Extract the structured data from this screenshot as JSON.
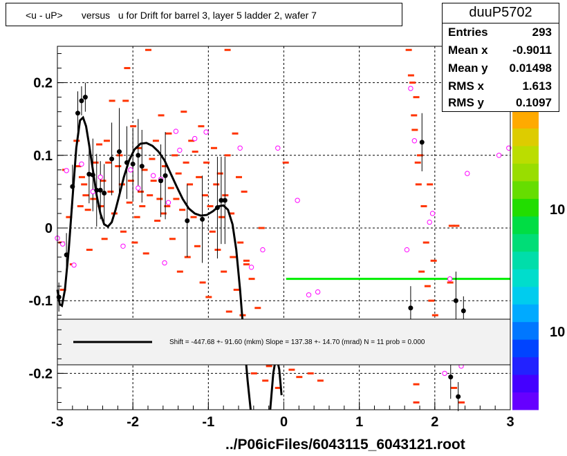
{
  "title": "<u - uP>       versus   u for Drift for barrel 3, layer 5 ladder 2, wafer 7",
  "stats": {
    "name": "duuP5702",
    "rows": [
      {
        "label": "Entries",
        "value": "293"
      },
      {
        "label": "Mean x",
        "value": "-0.9011"
      },
      {
        "label": "Mean y",
        "value": "0.01498"
      },
      {
        "label": "RMS x",
        "value": "1.613"
      },
      {
        "label": "RMS y",
        "value": "0.1097"
      }
    ]
  },
  "fit_legend": "Shift =  -447.68 +- 91.60 (mkm) Slope =   137.38 +- 14.70 (mrad)  N = 11 prob = 0.000",
  "footer": "../P06icFiles/6043115_6043121.root",
  "colors": {
    "hist_cells": "#ff3300",
    "profile_points": "#000000",
    "open_markers": "#ff00ff",
    "fit_line": "#000000",
    "zero_line": "#00ee00"
  },
  "chart_data": {
    "type": "scatter",
    "xlim": [
      -3,
      3
    ],
    "ylim": [
      -0.25,
      0.25
    ],
    "x_ticks": [
      -3,
      -2,
      -1,
      0,
      1,
      2,
      3
    ],
    "y_ticks": [
      -0.2,
      -0.1,
      0,
      0.1,
      0.2
    ],
    "x_tick_labels": [
      "-3",
      "-2",
      "-1",
      "0",
      "1",
      "2",
      "3"
    ],
    "y_tick_labels": [
      "-0.2",
      "-0.1",
      "0",
      "0.1",
      "0.2"
    ],
    "grid": true,
    "colorbar_labels": [
      "10",
      "10"
    ],
    "profile_points": [
      {
        "x": -2.98,
        "y": -0.095,
        "err": 0.02
      },
      {
        "x": -2.88,
        "y": -0.037,
        "err": 0.03
      },
      {
        "x": -2.8,
        "y": 0.057,
        "err": 0.03
      },
      {
        "x": -2.73,
        "y": 0.158,
        "err": 0.03
      },
      {
        "x": -2.68,
        "y": 0.175,
        "err": 0.02
      },
      {
        "x": -2.63,
        "y": 0.18,
        "err": 0.02
      },
      {
        "x": -2.58,
        "y": 0.074,
        "err": 0.04
      },
      {
        "x": -2.53,
        "y": 0.073,
        "err": 0.05
      },
      {
        "x": -2.48,
        "y": 0.052,
        "err": 0.05
      },
      {
        "x": -2.43,
        "y": 0.052,
        "err": 0.04
      },
      {
        "x": -2.38,
        "y": 0.048,
        "err": 0.04
      },
      {
        "x": -2.28,
        "y": 0.095,
        "err": 0.05
      },
      {
        "x": -2.18,
        "y": 0.105,
        "err": 0.06
      },
      {
        "x": -2.08,
        "y": 0.09,
        "err": 0.05
      },
      {
        "x": -2.0,
        "y": 0.088,
        "err": 0.05
      },
      {
        "x": -1.93,
        "y": 0.1,
        "err": 0.05
      },
      {
        "x": -1.88,
        "y": 0.085,
        "err": 0.05
      },
      {
        "x": -1.63,
        "y": 0.065,
        "err": 0.05
      },
      {
        "x": -1.57,
        "y": 0.072,
        "err": 0.06
      },
      {
        "x": -1.28,
        "y": 0.01,
        "err": 0.05
      },
      {
        "x": -1.08,
        "y": 0.012,
        "err": 0.06
      },
      {
        "x": -0.88,
        "y": 0.028,
        "err": 0.07
      },
      {
        "x": -0.83,
        "y": 0.038,
        "err": 0.06
      },
      {
        "x": -0.78,
        "y": 0.038,
        "err": 0.06
      },
      {
        "x": 1.83,
        "y": 0.118,
        "err": 0.04
      },
      {
        "x": 1.68,
        "y": -0.11,
        "err": 0.03
      },
      {
        "x": 2.21,
        "y": -0.205,
        "err": 0.03
      },
      {
        "x": 2.28,
        "y": -0.1,
        "err": 0.04
      },
      {
        "x": 2.31,
        "y": -0.232,
        "err": 0.02
      },
      {
        "x": 2.38,
        "y": -0.114,
        "err": 0.02
      }
    ],
    "open_markers": [
      {
        "x": -3.0,
        "y": -0.014
      },
      {
        "x": -2.93,
        "y": -0.022
      },
      {
        "x": -2.88,
        "y": 0.079
      },
      {
        "x": -2.78,
        "y": -0.051
      },
      {
        "x": -2.68,
        "y": 0.088
      },
      {
        "x": -2.53,
        "y": 0.05
      },
      {
        "x": -2.43,
        "y": 0.07
      },
      {
        "x": -2.13,
        "y": -0.025
      },
      {
        "x": -2.03,
        "y": 0.08
      },
      {
        "x": -1.93,
        "y": 0.055
      },
      {
        "x": -1.73,
        "y": 0.072
      },
      {
        "x": -1.63,
        "y": 0.067
      },
      {
        "x": -1.58,
        "y": -0.048
      },
      {
        "x": -1.53,
        "y": 0.035
      },
      {
        "x": -1.43,
        "y": 0.133
      },
      {
        "x": -1.38,
        "y": 0.107
      },
      {
        "x": -1.18,
        "y": 0.123
      },
      {
        "x": -1.03,
        "y": 0.132
      },
      {
        "x": -0.58,
        "y": 0.11
      },
      {
        "x": -0.43,
        "y": -0.054
      },
      {
        "x": -0.28,
        "y": -0.03
      },
      {
        "x": -0.08,
        "y": 0.11
      },
      {
        "x": 0.18,
        "y": 0.038
      },
      {
        "x": 0.33,
        "y": -0.092
      },
      {
        "x": 0.45,
        "y": -0.088
      },
      {
        "x": 1.63,
        "y": -0.03
      },
      {
        "x": 1.68,
        "y": 0.192
      },
      {
        "x": 1.73,
        "y": 0.12
      },
      {
        "x": 1.93,
        "y": 0.008
      },
      {
        "x": 1.97,
        "y": 0.02
      },
      {
        "x": 2.13,
        "y": -0.2
      },
      {
        "x": 2.2,
        "y": -0.07
      },
      {
        "x": 2.35,
        "y": -0.19
      },
      {
        "x": 2.43,
        "y": 0.075
      },
      {
        "x": 2.6,
        "y": 0.205
      },
      {
        "x": 2.85,
        "y": 0.1
      },
      {
        "x": 2.98,
        "y": 0.11
      }
    ],
    "hist_cells": [
      {
        "x": -2.95,
        "y": -0.02
      },
      {
        "x": -2.93,
        "y": -0.085
      },
      {
        "x": -2.9,
        "y": 0.08
      },
      {
        "x": -2.85,
        "y": 0.015
      },
      {
        "x": -2.8,
        "y": -0.05
      },
      {
        "x": -2.75,
        "y": 0.12
      },
      {
        "x": -2.73,
        "y": 0.085
      },
      {
        "x": -2.7,
        "y": 0.03
      },
      {
        "x": -2.68,
        "y": 0.07
      },
      {
        "x": -2.65,
        "y": 0.06
      },
      {
        "x": -2.63,
        "y": 0.045
      },
      {
        "x": -2.6,
        "y": 0.025
      },
      {
        "x": -2.58,
        "y": -0.03
      },
      {
        "x": -2.53,
        "y": 0.04
      },
      {
        "x": -2.5,
        "y": 0.09
      },
      {
        "x": -2.45,
        "y": 0.115
      },
      {
        "x": -2.43,
        "y": 0.03
      },
      {
        "x": -2.4,
        "y": 0.065
      },
      {
        "x": -2.38,
        "y": -0.015
      },
      {
        "x": -2.35,
        "y": 0.12
      },
      {
        "x": -2.33,
        "y": 0.09
      },
      {
        "x": -2.3,
        "y": 0.05
      },
      {
        "x": -2.28,
        "y": 0.175
      },
      {
        "x": -2.25,
        "y": 0.02
      },
      {
        "x": -2.2,
        "y": 0.085
      },
      {
        "x": -2.18,
        "y": 0.1
      },
      {
        "x": -2.15,
        "y": 0.06
      },
      {
        "x": -2.13,
        "y": -0.005
      },
      {
        "x": -2.1,
        "y": 0.175
      },
      {
        "x": -2.08,
        "y": 0.22
      },
      {
        "x": -2.05,
        "y": 0.035
      },
      {
        "x": -2.03,
        "y": 0.065
      },
      {
        "x": -2.0,
        "y": 0.14
      },
      {
        "x": -1.98,
        "y": -0.02
      },
      {
        "x": -1.95,
        "y": 0.015
      },
      {
        "x": -1.93,
        "y": 0.11
      },
      {
        "x": -1.9,
        "y": 0.05
      },
      {
        "x": -1.88,
        "y": 0.03
      },
      {
        "x": -1.85,
        "y": 0.08
      },
      {
        "x": -1.83,
        "y": -0.035
      },
      {
        "x": -1.8,
        "y": 0.245
      },
      {
        "x": -1.78,
        "y": 0.045
      },
      {
        "x": -1.75,
        "y": 0.095
      },
      {
        "x": -1.73,
        "y": 0.065
      },
      {
        "x": -1.7,
        "y": 0.12
      },
      {
        "x": -1.68,
        "y": 0.01
      },
      {
        "x": -1.65,
        "y": 0.04
      },
      {
        "x": -1.63,
        "y": 0.155
      },
      {
        "x": -1.6,
        "y": 0.02
      },
      {
        "x": -1.58,
        "y": 0.085
      },
      {
        "x": -1.55,
        "y": 0.03
      },
      {
        "x": -1.53,
        "y": 0.13
      },
      {
        "x": -1.5,
        "y": 0.055
      },
      {
        "x": -1.48,
        "y": -0.015
      },
      {
        "x": -1.45,
        "y": 0.1
      },
      {
        "x": -1.43,
        "y": 0.04
      },
      {
        "x": -1.4,
        "y": 0.075
      },
      {
        "x": -1.38,
        "y": -0.06
      },
      {
        "x": -1.35,
        "y": 0.025
      },
      {
        "x": -1.33,
        "y": 0.16
      },
      {
        "x": -1.3,
        "y": 0.09
      },
      {
        "x": -1.28,
        "y": -0.04
      },
      {
        "x": -1.25,
        "y": 0.06
      },
      {
        "x": -1.23,
        "y": 0.12
      },
      {
        "x": -1.2,
        "y": 0.015
      },
      {
        "x": -1.18,
        "y": 0.105
      },
      {
        "x": -1.15,
        "y": -0.025
      },
      {
        "x": -1.13,
        "y": 0.07
      },
      {
        "x": -1.1,
        "y": 0.14
      },
      {
        "x": -1.08,
        "y": -0.075
      },
      {
        "x": -1.05,
        "y": 0.045
      },
      {
        "x": -1.03,
        "y": 0.09
      },
      {
        "x": -1.0,
        "y": -0.095
      },
      {
        "x": -0.98,
        "y": 0.03
      },
      {
        "x": -0.95,
        "y": -0.005
      },
      {
        "x": -0.93,
        "y": 0.11
      },
      {
        "x": -0.9,
        "y": 0.06
      },
      {
        "x": -0.88,
        "y": -0.03
      },
      {
        "x": -0.85,
        "y": 0.075
      },
      {
        "x": -0.83,
        "y": 0.015
      },
      {
        "x": -0.8,
        "y": -0.06
      },
      {
        "x": -0.78,
        "y": 0.045
      },
      {
        "x": -0.75,
        "y": 0.1
      },
      {
        "x": -0.73,
        "y": -0.115
      },
      {
        "x": -0.7,
        "y": 0.02
      },
      {
        "x": -0.68,
        "y": -0.04
      },
      {
        "x": -0.65,
        "y": 0.13
      },
      {
        "x": -0.63,
        "y": -0.085
      },
      {
        "x": -0.6,
        "y": 0.07
      },
      {
        "x": -0.58,
        "y": -0.02
      },
      {
        "x": -0.55,
        "y": -0.12
      },
      {
        "x": -0.53,
        "y": 0.05
      },
      {
        "x": -0.5,
        "y": -0.05
      },
      {
        "x": -0.45,
        "y": -0.16
      },
      {
        "x": -0.43,
        "y": -0.07
      },
      {
        "x": -0.4,
        "y": -0.2
      },
      {
        "x": -0.35,
        "y": -0.11
      },
      {
        "x": -0.3,
        "y": -0.15
      },
      {
        "x": -0.25,
        "y": -0.21
      },
      {
        "x": -0.2,
        "y": -0.19
      },
      {
        "x": -0.15,
        "y": -0.13
      },
      {
        "x": -0.1,
        "y": -0.17
      },
      {
        "x": -0.08,
        "y": -0.22
      },
      {
        "x": 0.02,
        "y": 0.09
      },
      {
        "x": 0.1,
        "y": -0.195
      },
      {
        "x": 0.2,
        "y": -0.205
      },
      {
        "x": 0.35,
        "y": -0.2
      },
      {
        "x": 0.4,
        "y": -0.17
      },
      {
        "x": 0.48,
        "y": -0.21
      },
      {
        "x": 1.65,
        "y": 0.245
      },
      {
        "x": 1.68,
        "y": 0.21
      },
      {
        "x": 1.7,
        "y": 0.2
      },
      {
        "x": 1.72,
        "y": 0.155
      },
      {
        "x": 1.73,
        "y": 0.135
      },
      {
        "x": 1.75,
        "y": 0.18
      },
      {
        "x": 1.77,
        "y": 0.09
      },
      {
        "x": 1.78,
        "y": 0.06
      },
      {
        "x": 1.8,
        "y": 0.1
      },
      {
        "x": 1.82,
        "y": -0.06
      },
      {
        "x": 1.85,
        "y": 0.03
      },
      {
        "x": 1.88,
        "y": -0.02
      },
      {
        "x": 1.9,
        "y": -0.08
      },
      {
        "x": 1.93,
        "y": 0.06
      },
      {
        "x": 1.95,
        "y": -0.1
      },
      {
        "x": 1.98,
        "y": -0.045
      },
      {
        "x": 2.0,
        "y": -0.12
      },
      {
        "x": 2.05,
        "y": -0.14
      },
      {
        "x": 2.1,
        "y": -0.18
      },
      {
        "x": 2.15,
        "y": -0.155
      },
      {
        "x": 2.2,
        "y": -0.075
      },
      {
        "x": 2.22,
        "y": 0.003
      },
      {
        "x": 2.25,
        "y": -0.22
      },
      {
        "x": 2.28,
        "y": 0.003
      },
      {
        "x": 2.3,
        "y": -0.17
      },
      {
        "x": 2.35,
        "y": -0.24
      },
      {
        "x": -0.75,
        "y": 0.245
      },
      {
        "x": -0.5,
        "y": -0.045
      },
      {
        "x": -0.3,
        "y": 0.0
      },
      {
        "x": 1.75,
        "y": -0.215
      },
      {
        "x": 1.75,
        "y": -0.24
      }
    ],
    "fit_curve": [
      [
        -3.0,
        -0.085
      ],
      [
        -2.97,
        -0.105
      ],
      [
        -2.94,
        -0.107
      ],
      [
        -2.9,
        -0.085
      ],
      [
        -2.85,
        -0.03
      ],
      [
        -2.8,
        0.04
      ],
      [
        -2.75,
        0.11
      ],
      [
        -2.7,
        0.148
      ],
      [
        -2.66,
        0.152
      ],
      [
        -2.62,
        0.14
      ],
      [
        -2.58,
        0.115
      ],
      [
        -2.53,
        0.08
      ],
      [
        -2.48,
        0.045
      ],
      [
        -2.43,
        0.02
      ],
      [
        -2.38,
        0.005
      ],
      [
        -2.33,
        0.002
      ],
      [
        -2.28,
        0.008
      ],
      [
        -2.23,
        0.025
      ],
      [
        -2.18,
        0.045
      ],
      [
        -2.12,
        0.07
      ],
      [
        -2.05,
        0.093
      ],
      [
        -1.98,
        0.108
      ],
      [
        -1.9,
        0.116
      ],
      [
        -1.82,
        0.117
      ],
      [
        -1.74,
        0.113
      ],
      [
        -1.66,
        0.105
      ],
      [
        -1.58,
        0.093
      ],
      [
        -1.5,
        0.075
      ],
      [
        -1.42,
        0.057
      ],
      [
        -1.34,
        0.04
      ],
      [
        -1.26,
        0.027
      ],
      [
        -1.18,
        0.02
      ],
      [
        -1.1,
        0.017
      ],
      [
        -1.02,
        0.018
      ],
      [
        -0.94,
        0.023
      ],
      [
        -0.86,
        0.03
      ],
      [
        -0.8,
        0.031
      ],
      [
        -0.74,
        0.025
      ],
      [
        -0.68,
        0.005
      ],
      [
        -0.63,
        -0.03
      ],
      [
        -0.58,
        -0.085
      ],
      [
        -0.53,
        -0.15
      ],
      [
        -0.48,
        -0.21
      ],
      [
        -0.44,
        -0.25
      ]
    ],
    "fit_curve2": [
      [
        -0.18,
        -0.25
      ],
      [
        -0.14,
        -0.2
      ],
      [
        -0.1,
        -0.175
      ],
      [
        -0.06,
        -0.195
      ],
      [
        -0.03,
        -0.23
      ]
    ],
    "zero_line": {
      "x": [
        0.03,
        3.0
      ],
      "y": -0.07
    }
  }
}
